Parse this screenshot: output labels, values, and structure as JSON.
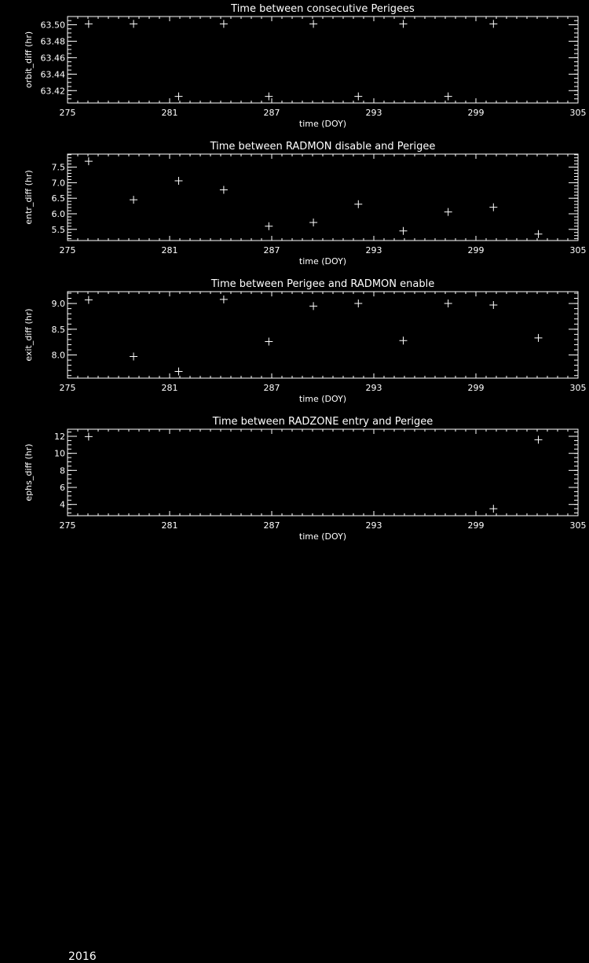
{
  "footer": {
    "year": "2016"
  },
  "colors": {
    "background": "#000000",
    "foreground": "#ffffff"
  },
  "chart_data": [
    {
      "type": "scatter",
      "marker": "plus",
      "title": "Time between consecutive Perigees",
      "xlabel": "time (DOY)",
      "ylabel": "orbit_diff (hr)",
      "xlim": [
        275,
        305
      ],
      "ylim": [
        63.405,
        63.51
      ],
      "xticks": [
        "275",
        "281",
        "287",
        "293",
        "299",
        "305"
      ],
      "yticks": [
        "63.42",
        "63.44",
        "63.46",
        "63.48",
        "63.50"
      ],
      "ytick_values": [
        63.42,
        63.44,
        63.46,
        63.48,
        63.5
      ],
      "yminor": 0.005,
      "x": [
        276.24,
        278.88,
        281.53,
        284.18,
        286.83,
        289.45,
        292.09,
        294.73,
        297.37,
        300.03
      ],
      "y": [
        63.501,
        63.501,
        63.413,
        63.501,
        63.413,
        63.501,
        63.413,
        63.501,
        63.413,
        63.501
      ]
    },
    {
      "type": "scatter",
      "marker": "plus",
      "title": "Time between RADMON disable and Perigee",
      "xlabel": "time (DOY)",
      "ylabel": "entr_diff (hr)",
      "xlim": [
        275,
        305
      ],
      "ylim": [
        5.14,
        7.92
      ],
      "xticks": [
        "275",
        "281",
        "287",
        "293",
        "299",
        "305"
      ],
      "yticks": [
        "5.5",
        "6.0",
        "6.5",
        "7.0",
        "7.5"
      ],
      "ytick_values": [
        5.5,
        6.0,
        6.5,
        7.0,
        7.5
      ],
      "yminor": 0.1,
      "x": [
        276.24,
        278.88,
        281.53,
        284.18,
        286.83,
        289.45,
        292.09,
        294.73,
        297.37,
        300.03,
        302.67
      ],
      "y": [
        7.69,
        6.45,
        7.06,
        6.77,
        5.6,
        5.72,
        6.31,
        5.45,
        6.06,
        6.21,
        5.35
      ]
    },
    {
      "type": "scatter",
      "marker": "plus",
      "title": "Time between Perigee and RADMON enable",
      "xlabel": "time (DOY)",
      "ylabel": "exit_diff (hr)",
      "xlim": [
        275,
        305
      ],
      "ylim": [
        7.55,
        9.23
      ],
      "xticks": [
        "275",
        "281",
        "287",
        "293",
        "299",
        "305"
      ],
      "yticks": [
        "8.0",
        "8.5",
        "9.0"
      ],
      "ytick_values": [
        8.0,
        8.5,
        9.0
      ],
      "yminor": 0.1,
      "x": [
        276.24,
        278.88,
        281.53,
        284.18,
        286.83,
        289.45,
        292.09,
        294.73,
        297.37,
        300.03,
        302.67
      ],
      "y": [
        9.07,
        7.97,
        7.68,
        9.08,
        8.26,
        8.95,
        9.0,
        8.28,
        9.0,
        8.97,
        8.33
      ]
    },
    {
      "type": "scatter",
      "marker": "plus",
      "title": "Time between RADZONE entry and Perigee",
      "xlabel": "time (DOY)",
      "ylabel": "ephs_diff (hr)",
      "xlim": [
        275,
        305
      ],
      "ylim": [
        2.68,
        12.83
      ],
      "xticks": [
        "275",
        "281",
        "287",
        "293",
        "299",
        "305"
      ],
      "yticks": [
        "4",
        "6",
        "8",
        "10",
        "12"
      ],
      "ytick_values": [
        4,
        6,
        8,
        10,
        12
      ],
      "yminor": 0.5,
      "x": [
        276.24,
        300.03,
        302.67
      ],
      "y": [
        11.97,
        3.5,
        11.6
      ]
    }
  ]
}
